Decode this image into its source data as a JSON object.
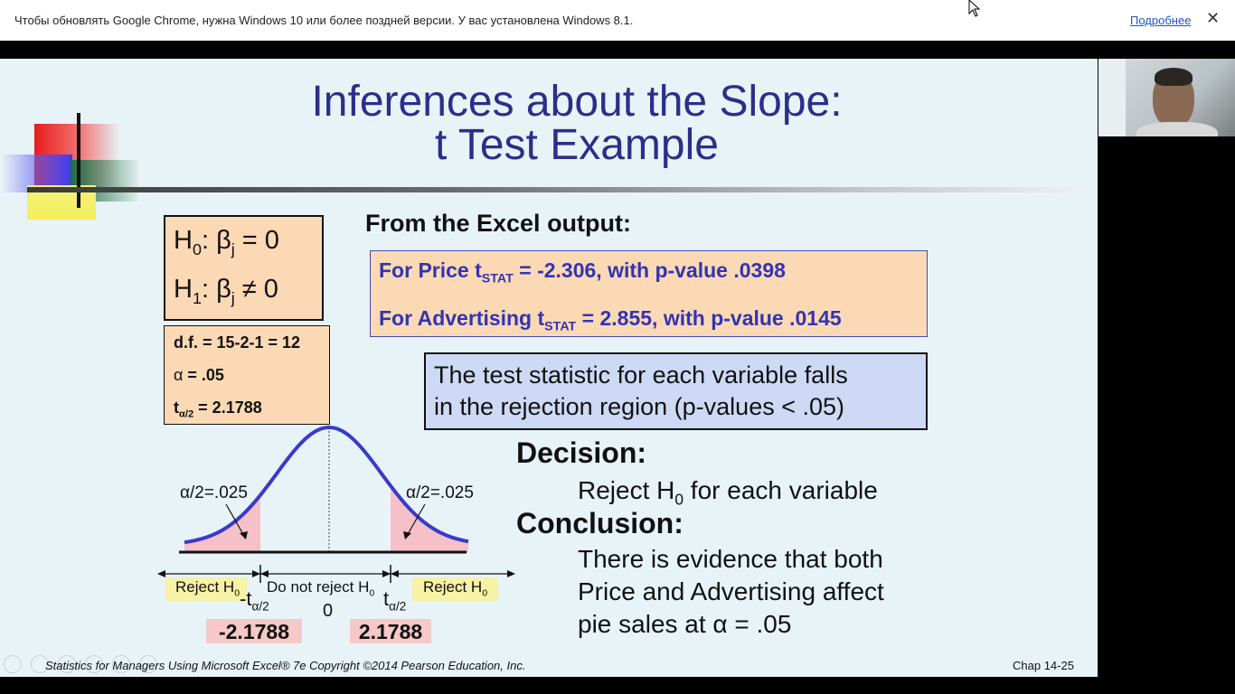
{
  "infobar": {
    "message": "Чтобы обновлять Google Chrome, нужна Windows 10 или более поздней версии. У вас установлена Windows 8.1.",
    "link": "Подробнее",
    "close": "✕"
  },
  "slide": {
    "title_line1": "Inferences about the Slope:",
    "title_line2": "t Test Example",
    "h0": {
      "a": "H",
      "b": "0",
      "c": ": β",
      "d": "j",
      "e": " = 0"
    },
    "h1": {
      "a": "H",
      "b": "1",
      "c": ": β",
      "d": "j",
      "e": " ≠ 0"
    },
    "df": "d.f. = 15-2-1 = 12",
    "alpha": {
      "sym": "α",
      "val": " = .05"
    },
    "talpha": {
      "t": "t",
      "sub": "α/2",
      "val": " = 2.1788"
    },
    "excel_heading": "From the Excel output:",
    "price": {
      "a": "For Price t",
      "sub": "STAT",
      "b": " = -2.306, with p-value .0398"
    },
    "advertising": {
      "a": "For Advertising t",
      "sub": "STAT",
      "b": " = 2.855, with p-value .0145"
    },
    "statement_line1": "The test statistic for each variable falls",
    "statement_line2": "in the rejection region (p-values < .05)",
    "decision_heading": "Decision:",
    "decision": {
      "a": "Reject H",
      "sub": "0",
      "b": " for each variable"
    },
    "conclusion_heading": "Conclusion:",
    "conclusion_line1": "There is evidence that both",
    "conclusion_line2": "Price and Advertising affect",
    "conclusion_line3": "pie sales at α = .05",
    "footer": "Statistics for Managers Using Microsoft Excel® 7e Copyright ©2014 Pearson Education, Inc.",
    "page": "Chap 14-25"
  },
  "chart": {
    "left_tail": "α/2=.025",
    "right_tail": "α/2=.025",
    "reject_left": {
      "a": "Reject H",
      "sub": "0"
    },
    "do_not_reject": {
      "a": "Do not reject H",
      "sub": "0"
    },
    "reject_right": {
      "a": "Reject H",
      "sub": "0"
    },
    "neg_t": {
      "a": "-t",
      "sub": "α/2"
    },
    "pos_t": {
      "a": "t",
      "sub": "α/2"
    },
    "zero": "0",
    "crit_left": "-2.1788",
    "crit_right": "2.1788",
    "curve_color": "#3a3ac8",
    "shade_color": "#f6c0c8"
  }
}
